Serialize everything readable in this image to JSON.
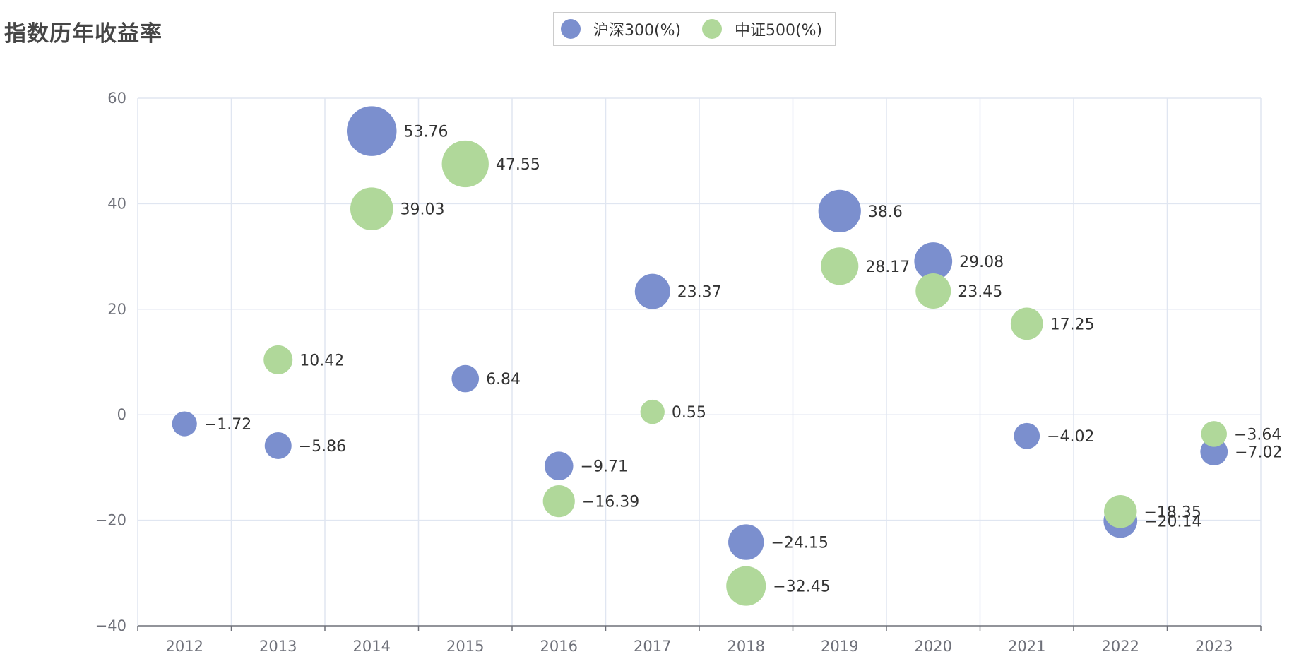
{
  "chart_data": {
    "type": "scatter",
    "title": "指数历年收益率",
    "x": [
      "2012",
      "2013",
      "2014",
      "2015",
      "2016",
      "2017",
      "2018",
      "2019",
      "2020",
      "2021",
      "2022",
      "2023"
    ],
    "ylim": [
      -40,
      60
    ],
    "yticks": [
      60,
      40,
      20,
      0,
      -20,
      -40
    ],
    "legend_position": "top-center",
    "grid": true,
    "series": [
      {
        "name": "沪深300(%)",
        "color": "#7b8fce",
        "values": [
          -1.72,
          -5.86,
          53.76,
          6.84,
          -9.71,
          23.37,
          -24.15,
          38.6,
          29.08,
          -4.02,
          -20.14,
          -7.02
        ],
        "labels": [
          "−1.72",
          "−5.86",
          "53.76",
          "6.84",
          "−9.71",
          "23.37",
          "−24.15",
          "38.6",
          "29.08",
          "−4.02",
          "−20.14",
          "−7.02"
        ]
      },
      {
        "name": "中证500(%)",
        "color": "#b0d89a",
        "values": [
          null,
          10.42,
          39.03,
          47.55,
          -16.39,
          0.55,
          -32.45,
          28.17,
          23.45,
          17.25,
          -18.35,
          -3.64
        ],
        "labels": [
          "",
          "10.42",
          "39.03",
          "47.55",
          "−16.39",
          "0.55",
          "−32.45",
          "28.17",
          "23.45",
          "17.25",
          "−18.35",
          "−3.64"
        ]
      }
    ]
  }
}
